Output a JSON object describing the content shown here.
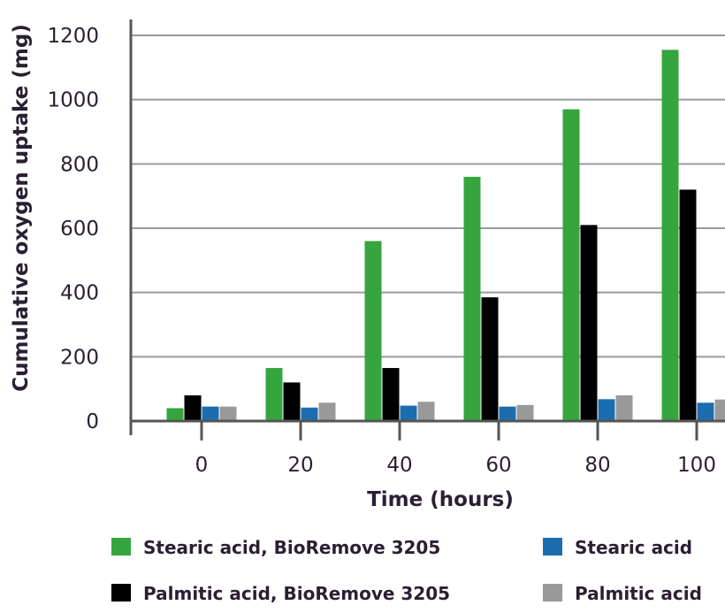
{
  "chart_data": {
    "type": "bar",
    "xlabel": "Time (hours)",
    "ylabel": "Cumulative oxygen uptake (mg)",
    "categories": [
      "0",
      "20",
      "40",
      "60",
      "80",
      "100"
    ],
    "ylim": [
      0,
      1200
    ],
    "yticks": [
      0,
      200,
      400,
      600,
      800,
      1000,
      1200
    ],
    "grid": true,
    "legend_position": "bottom",
    "series": [
      {
        "name": "Stearic acid, BioRemove 3205",
        "color": "#34a63d",
        "values": [
          40,
          165,
          560,
          760,
          970,
          1155
        ]
      },
      {
        "name": "Palmitic acid, BioRemove 3205",
        "color": "#000000",
        "values": [
          80,
          120,
          165,
          385,
          610,
          720
        ]
      },
      {
        "name": "Stearic acid",
        "color": "#1c6db0",
        "values": [
          45,
          42,
          48,
          45,
          68,
          57
        ]
      },
      {
        "name": "Palmitic acid",
        "color": "#999999",
        "values": [
          45,
          57,
          60,
          50,
          80,
          67
        ]
      }
    ]
  }
}
